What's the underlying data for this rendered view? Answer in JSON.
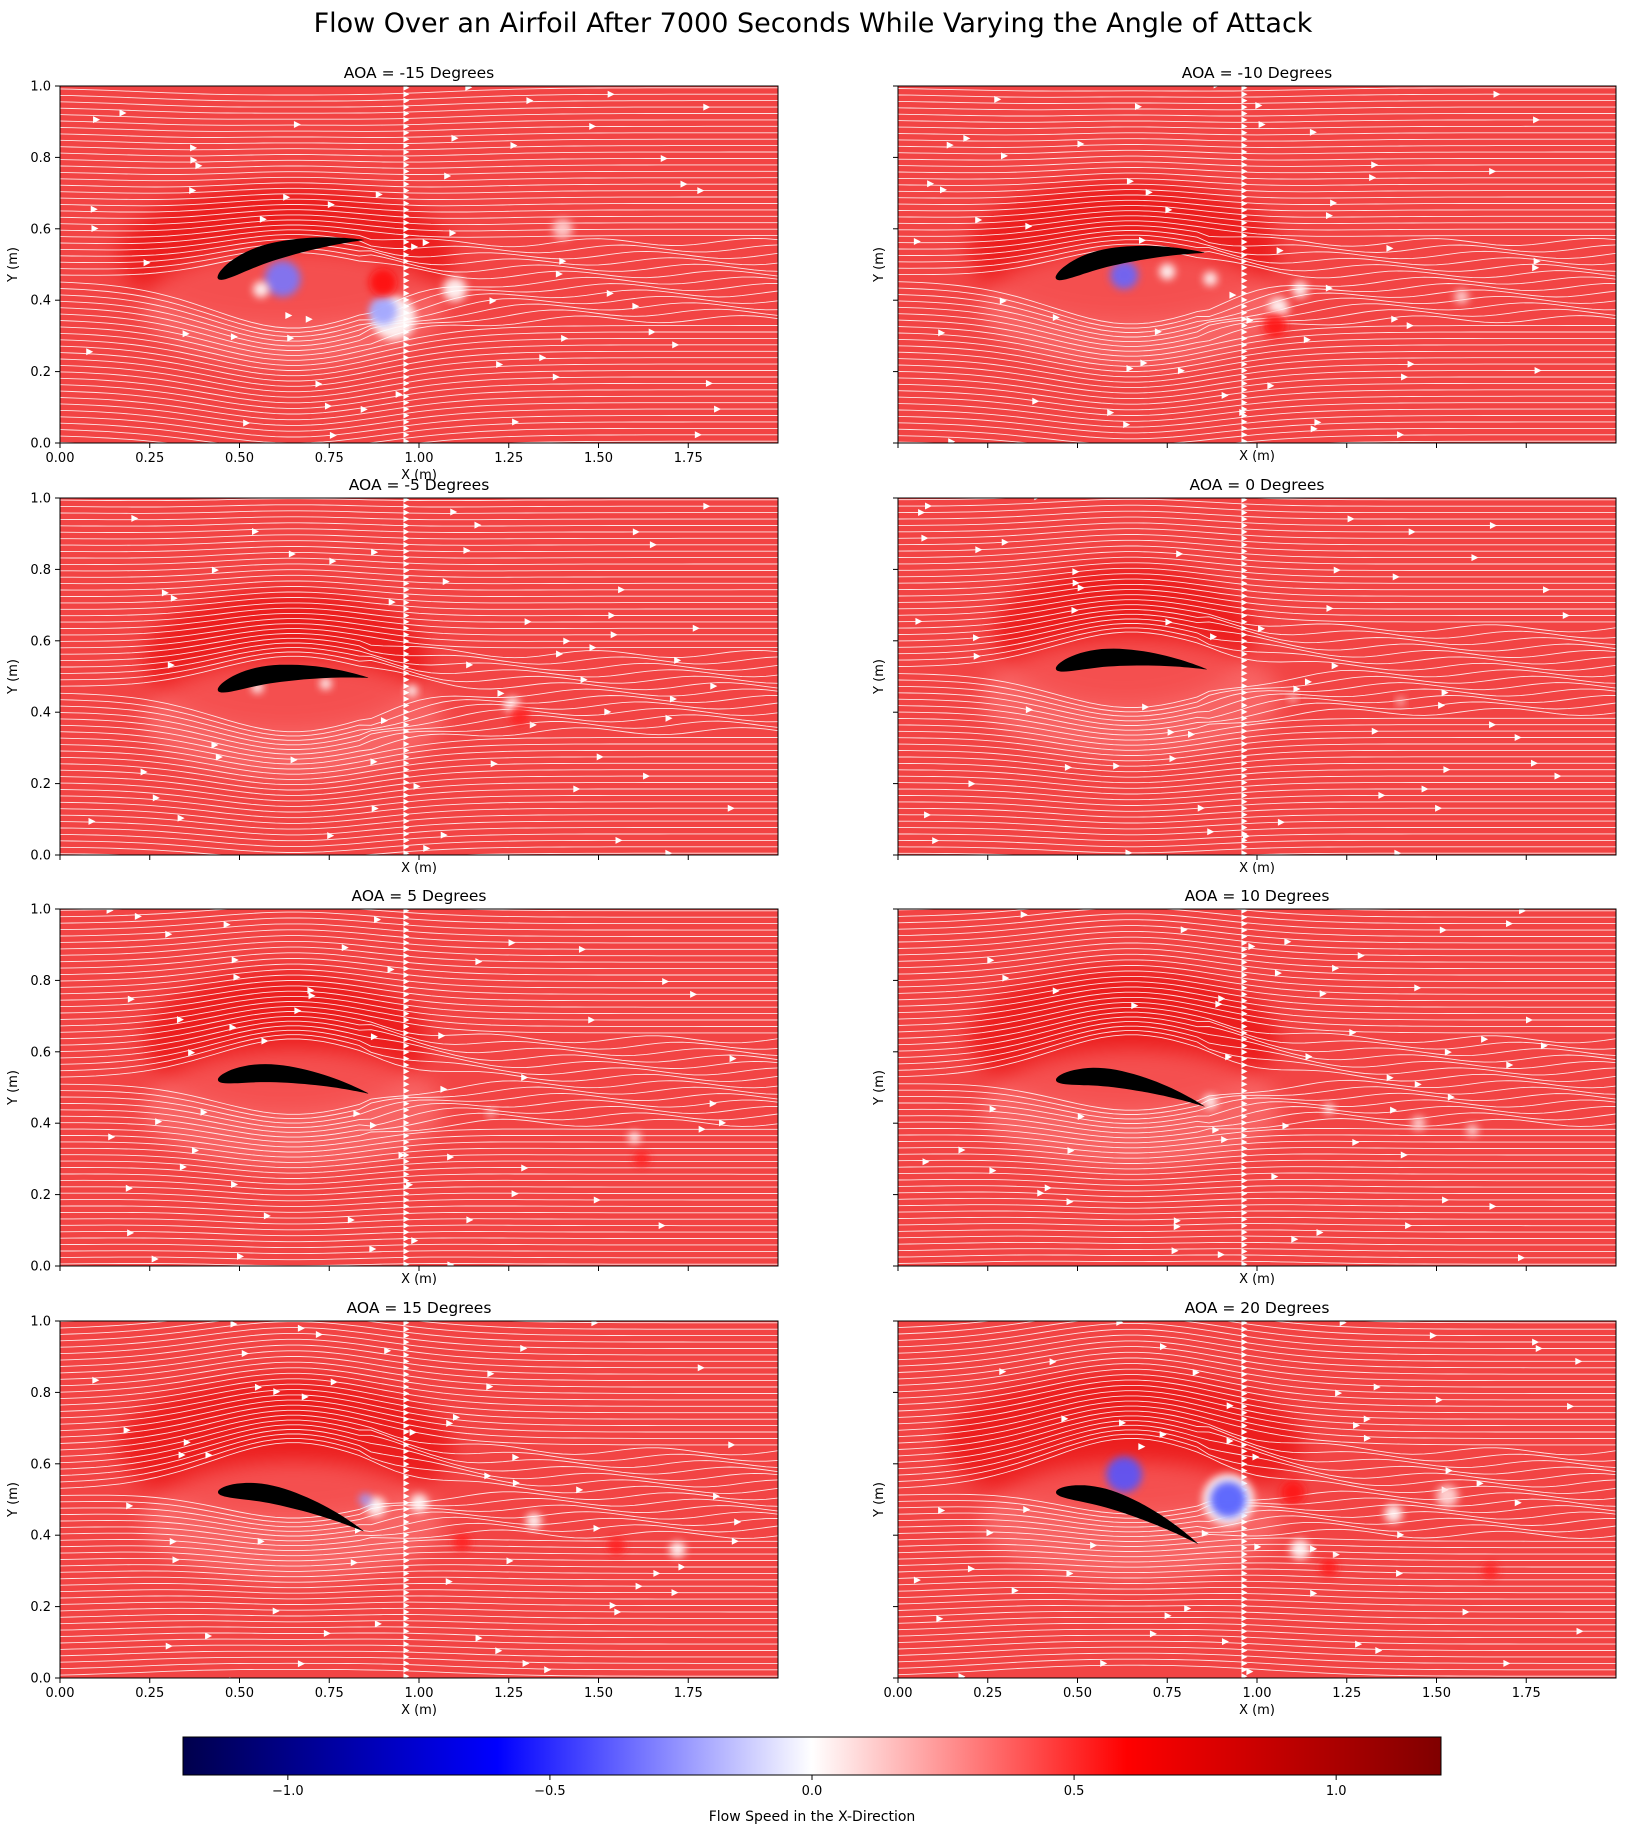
{
  "figure_title": "Flow Over an Airfoil After 7000 Seconds While Varying the Angle of Attack",
  "colors": {
    "field_base": "#f24444",
    "colormap": [
      "#00004c",
      "#0000ff",
      "#ffffff",
      "#ff0000",
      "#800000"
    ],
    "streamline": "#ffffff",
    "airfoil": "#000000"
  },
  "chart_data": [
    {
      "type": "heatmap",
      "title": "AOA = -15 Degrees",
      "aoa": -15,
      "xlabel": "X (m)",
      "ylabel": "Y (m)",
      "xlim": [
        0,
        2.0
      ],
      "ylim": [
        0,
        1.0
      ],
      "xticks": [
        "0.00",
        "0.25",
        "0.50",
        "0.75",
        "1.00",
        "1.25",
        "1.50",
        "1.75"
      ],
      "yticks": [
        "0.0",
        "0.2",
        "0.4",
        "0.6",
        "0.8",
        "1.0"
      ]
    },
    {
      "type": "heatmap",
      "title": "AOA = -10 Degrees",
      "aoa": -10,
      "xlabel": "X (m)",
      "ylabel": "Y (m)",
      "xlim": [
        0,
        2.0
      ],
      "ylim": [
        0,
        1.0
      ],
      "xticks": [],
      "yticks": []
    },
    {
      "type": "heatmap",
      "title": "AOA = -5 Degrees",
      "aoa": -5,
      "xlabel": "X (m)",
      "ylabel": "Y (m)",
      "xlim": [
        0,
        2.0
      ],
      "ylim": [
        0,
        1.0
      ],
      "xticks": [],
      "yticks": [
        "0.0",
        "0.2",
        "0.4",
        "0.6",
        "0.8",
        "1.0"
      ]
    },
    {
      "type": "heatmap",
      "title": "AOA = 0 Degrees",
      "aoa": 0,
      "xlabel": "X (m)",
      "ylabel": "Y (m)",
      "xlim": [
        0,
        2.0
      ],
      "ylim": [
        0,
        1.0
      ],
      "xticks": [],
      "yticks": []
    },
    {
      "type": "heatmap",
      "title": "AOA = 5 Degrees",
      "aoa": 5,
      "xlabel": "X (m)",
      "ylabel": "Y (m)",
      "xlim": [
        0,
        2.0
      ],
      "ylim": [
        0,
        1.0
      ],
      "xticks": [],
      "yticks": [
        "0.0",
        "0.2",
        "0.4",
        "0.6",
        "0.8",
        "1.0"
      ]
    },
    {
      "type": "heatmap",
      "title": "AOA = 10 Degrees",
      "aoa": 10,
      "xlabel": "X (m)",
      "ylabel": "Y (m)",
      "xlim": [
        0,
        2.0
      ],
      "ylim": [
        0,
        1.0
      ],
      "xticks": [],
      "yticks": []
    },
    {
      "type": "heatmap",
      "title": "AOA = 15 Degrees",
      "aoa": 15,
      "xlabel": "X (m)",
      "ylabel": "Y (m)",
      "xlim": [
        0,
        2.0
      ],
      "ylim": [
        0,
        1.0
      ],
      "xticks": [
        "0.00",
        "0.25",
        "0.50",
        "0.75",
        "1.00",
        "1.25",
        "1.50",
        "1.75"
      ],
      "yticks": [
        "0.0",
        "0.2",
        "0.4",
        "0.6",
        "0.8",
        "1.0"
      ]
    },
    {
      "type": "heatmap",
      "title": "AOA = 20 Degrees",
      "aoa": 20,
      "xlabel": "X (m)",
      "ylabel": "Y (m)",
      "xlim": [
        0,
        2.0
      ],
      "ylim": [
        0,
        1.0
      ],
      "xticks": [
        "0.00",
        "0.25",
        "0.50",
        "0.75",
        "1.00",
        "1.25",
        "1.50",
        "1.75"
      ],
      "yticks": []
    }
  ],
  "colorbar": {
    "label": "Flow Speed in the X-Direction",
    "range": [
      -1.2,
      1.2
    ],
    "ticks": [
      {
        "value": -1.0,
        "label": "−1.0"
      },
      {
        "value": -0.5,
        "label": "−0.5"
      },
      {
        "value": 0.0,
        "label": "0.0"
      },
      {
        "value": 0.5,
        "label": "0.5"
      },
      {
        "value": 1.0,
        "label": "1.0"
      }
    ]
  }
}
